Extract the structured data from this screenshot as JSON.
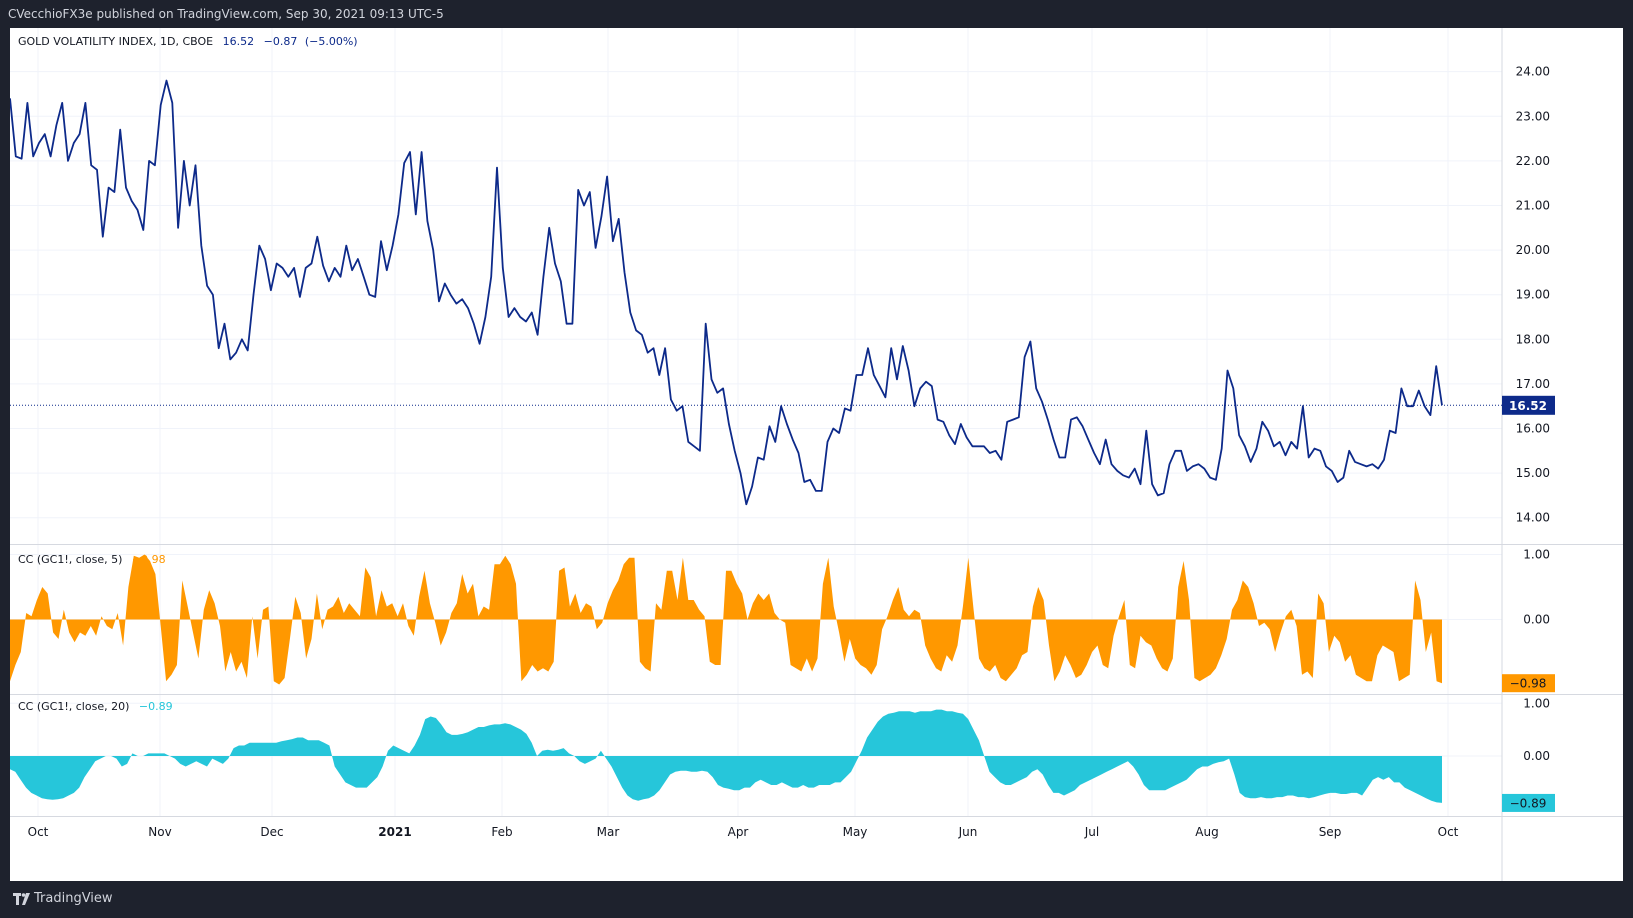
{
  "header": {
    "published": "CVecchioFX3e published on TradingView.com, Sep 30, 2021 09:13 UTC-5"
  },
  "footer": {
    "brand": "TradingView"
  },
  "colors": {
    "price_line": "#0d2a8a",
    "cc5": "#ff9800",
    "cc20": "#26c6da",
    "bg": "#ffffff",
    "frame": "#1e222d"
  },
  "chart_data": [
    {
      "type": "line",
      "legend": {
        "title": "GOLD VOLATILITY INDEX, 1D, CBOE",
        "last": "16.52",
        "change": "−0.87",
        "change_pct": "(−5.00%)"
      },
      "last_label": "16.52",
      "ylim": [
        13.5,
        24.8
      ],
      "yticks": [
        "14.00",
        "15.00",
        "16.00",
        "17.00",
        "18.00",
        "19.00",
        "20.00",
        "21.00",
        "22.00",
        "23.00",
        "24.00"
      ],
      "x_labels": [
        "Oct",
        "Nov",
        "Dec",
        "2021",
        "Feb",
        "Mar",
        "Apr",
        "May",
        "Jun",
        "Jul",
        "Aug",
        "Sep",
        "Oct"
      ],
      "series": [
        {
          "values": [
            23.4,
            22.1,
            22.05,
            23.3,
            22.1,
            22.4,
            22.6,
            22.1,
            22.8,
            23.3,
            22.0,
            22.4,
            22.6,
            23.3,
            21.9,
            21.8,
            20.3,
            21.4,
            21.3,
            22.7,
            21.4,
            21.1,
            20.9,
            20.45,
            22.0,
            21.9,
            23.25,
            23.8,
            23.3,
            20.5,
            22.0,
            21.0,
            21.9,
            20.1,
            19.2,
            19.0,
            17.8,
            18.35,
            17.55,
            17.7,
            18.0,
            17.75,
            19.0,
            20.1,
            19.8,
            19.1,
            19.7,
            19.6,
            19.4,
            19.6,
            18.95,
            19.6,
            19.7,
            20.3,
            19.65,
            19.3,
            19.6,
            19.4,
            20.1,
            19.55,
            19.8,
            19.4,
            19.0,
            18.95,
            20.2,
            19.55,
            20.1,
            20.8,
            21.95,
            22.2,
            20.8,
            22.2,
            20.65,
            20.0,
            18.85,
            19.25,
            19.0,
            18.8,
            18.9,
            18.7,
            18.35,
            17.9,
            18.5,
            19.4,
            21.85,
            19.6,
            18.5,
            18.7,
            18.5,
            18.4,
            18.6,
            18.1,
            19.4,
            20.5,
            19.7,
            19.3,
            18.35,
            18.35,
            21.35,
            21.0,
            21.3,
            20.05,
            20.75,
            21.65,
            20.2,
            20.7,
            19.5,
            18.6,
            18.2,
            18.1,
            17.7,
            17.8,
            17.2,
            17.8,
            16.65,
            16.4,
            16.5,
            15.7,
            15.6,
            15.5,
            18.35,
            17.1,
            16.8,
            16.9,
            16.1,
            15.5,
            15.0,
            14.3,
            14.7,
            15.35,
            15.3,
            16.05,
            15.7,
            16.5,
            16.1,
            15.75,
            15.45,
            14.8,
            14.85,
            14.6,
            14.6,
            15.7,
            16.0,
            15.9,
            16.45,
            16.4,
            17.2,
            17.2,
            17.8,
            17.2,
            16.95,
            16.7,
            17.8,
            17.1,
            17.85,
            17.3,
            16.5,
            16.9,
            17.05,
            16.95,
            16.2,
            16.15,
            15.85,
            15.65,
            16.1,
            15.8,
            15.6,
            15.6,
            15.6,
            15.45,
            15.5,
            15.3,
            16.15,
            16.2,
            16.25,
            17.6,
            17.95,
            16.9,
            16.6,
            16.2,
            15.75,
            15.35,
            15.35,
            16.2,
            16.25,
            16.05,
            15.75,
            15.45,
            15.2,
            15.75,
            15.2,
            15.05,
            14.95,
            14.9,
            15.1,
            14.75,
            15.95,
            14.75,
            14.5,
            14.55,
            15.2,
            15.5,
            15.5,
            15.05,
            15.15,
            15.2,
            15.1,
            14.9,
            14.85,
            15.55,
            17.3,
            16.9,
            15.85,
            15.6,
            15.25,
            15.55,
            16.15,
            15.95,
            15.6,
            15.7,
            15.4,
            15.7,
            15.55,
            16.5,
            15.35,
            15.55,
            15.5,
            15.15,
            15.05,
            14.8,
            14.9,
            15.5,
            15.25,
            15.2,
            15.15,
            15.2,
            15.1,
            15.3,
            15.95,
            15.9,
            16.9,
            16.5,
            16.5,
            16.85,
            16.5,
            16.3,
            17.4,
            16.52
          ]
        }
      ]
    },
    {
      "type": "area",
      "legend": {
        "title": "CC (GC1!, close, 5)",
        "last": "−0.98"
      },
      "last_label": "−0.98",
      "ylim": [
        -1.1,
        1.1
      ],
      "yticks": [
        "1.00",
        "0.00"
      ],
      "series": [
        {
          "values": [
            -0.95,
            -0.7,
            -0.5,
            0.1,
            0.05,
            0.3,
            0.5,
            0.4,
            -0.2,
            -0.3,
            0.15,
            -0.2,
            -0.35,
            -0.2,
            -0.25,
            -0.1,
            -0.25,
            0.05,
            -0.1,
            -0.15,
            0.1,
            -0.4,
            0.5,
            0.98,
            0.95,
            1.0,
            0.9,
            0.7,
            -0.1,
            -0.95,
            -0.85,
            -0.7,
            0.6,
            0.2,
            -0.2,
            -0.6,
            0.15,
            0.45,
            0.25,
            -0.1,
            -0.8,
            -0.5,
            -0.8,
            -0.65,
            -0.9,
            0.05,
            -0.6,
            0.15,
            0.2,
            -0.95,
            -1.0,
            -0.9,
            -0.3,
            0.35,
            0.1,
            -0.6,
            -0.3,
            0.4,
            -0.15,
            0.15,
            0.2,
            0.35,
            0.1,
            0.25,
            0.15,
            0.05,
            0.8,
            0.65,
            0.05,
            0.45,
            0.2,
            0.25,
            0.05,
            0.25,
            -0.1,
            -0.25,
            0.35,
            0.75,
            0.25,
            -0.05,
            -0.4,
            -0.2,
            0.1,
            0.25,
            0.7,
            0.4,
            0.55,
            0.05,
            0.2,
            0.15,
            0.85,
            0.85,
            0.98,
            0.85,
            0.55,
            -0.95,
            -0.85,
            -0.7,
            -0.8,
            -0.75,
            -0.8,
            -0.65,
            0.75,
            0.8,
            0.2,
            0.4,
            0.1,
            0.25,
            0.2,
            -0.15,
            -0.05,
            0.25,
            0.45,
            0.6,
            0.85,
            0.95,
            0.95,
            -0.65,
            -0.75,
            -0.8,
            0.25,
            0.15,
            0.75,
            0.75,
            0.3,
            0.95,
            0.3,
            0.3,
            0.15,
            0.05,
            -0.65,
            -0.7,
            -0.7,
            0.75,
            0.75,
            0.55,
            0.4,
            0.0,
            0.25,
            0.4,
            0.3,
            0.4,
            0.1,
            0.0,
            -0.05,
            -0.7,
            -0.75,
            -0.8,
            -0.6,
            -0.8,
            -0.6,
            0.55,
            0.95,
            0.2,
            -0.2,
            -0.65,
            -0.3,
            -0.6,
            -0.7,
            -0.75,
            -0.85,
            -0.7,
            -0.15,
            0.05,
            0.3,
            0.5,
            0.15,
            0.05,
            0.15,
            0.1,
            -0.4,
            -0.6,
            -0.75,
            -0.8,
            -0.55,
            -0.65,
            -0.4,
            0.2,
            0.95,
            0.15,
            -0.6,
            -0.75,
            -0.8,
            -0.7,
            -0.9,
            -0.95,
            -0.85,
            -0.75,
            -0.55,
            -0.5,
            0.2,
            0.5,
            0.3,
            -0.4,
            -0.95,
            -0.8,
            -0.55,
            -0.7,
            -0.9,
            -0.85,
            -0.7,
            -0.5,
            -0.4,
            -0.7,
            -0.75,
            -0.25,
            0.05,
            0.3,
            -0.7,
            -0.75,
            -0.25,
            -0.35,
            -0.4,
            -0.6,
            -0.75,
            -0.8,
            -0.6,
            0.5,
            0.9,
            0.3,
            -0.9,
            -0.95,
            -0.9,
            -0.85,
            -0.75,
            -0.55,
            -0.3,
            0.15,
            0.3,
            0.6,
            0.5,
            0.25,
            -0.1,
            -0.05,
            -0.15,
            -0.5,
            -0.2,
            0.05,
            0.15,
            -0.1,
            -0.85,
            -0.8,
            -0.9,
            0.4,
            0.25,
            -0.5,
            -0.25,
            -0.35,
            -0.65,
            -0.55,
            -0.85,
            -0.9,
            -0.95,
            -0.95,
            -0.55,
            -0.4,
            -0.45,
            -0.5,
            -0.95,
            -0.9,
            -0.85,
            0.6,
            0.3,
            -0.5,
            -0.2,
            -0.95,
            -0.98
          ]
        }
      ]
    },
    {
      "type": "area",
      "legend": {
        "title": "CC (GC1!, close, 20)",
        "last": "−0.89"
      },
      "last_label": "−0.89",
      "ylim": [
        -1.1,
        1.1
      ],
      "yticks": [
        "1.00",
        "0.00"
      ],
      "series": [
        {
          "values": [
            -0.25,
            -0.3,
            -0.45,
            -0.6,
            -0.7,
            -0.75,
            -0.8,
            -0.82,
            -0.83,
            -0.82,
            -0.8,
            -0.75,
            -0.7,
            -0.6,
            -0.4,
            -0.25,
            -0.1,
            -0.05,
            0.0,
            0.0,
            -0.05,
            -0.2,
            -0.15,
            0.05,
            0.0,
            0.0,
            0.05,
            0.05,
            0.05,
            0.05,
            0.0,
            -0.05,
            -0.15,
            -0.2,
            -0.15,
            -0.1,
            -0.15,
            -0.2,
            -0.05,
            -0.1,
            -0.15,
            -0.05,
            0.15,
            0.2,
            0.2,
            0.25,
            0.25,
            0.25,
            0.25,
            0.25,
            0.25,
            0.28,
            0.3,
            0.32,
            0.35,
            0.35,
            0.3,
            0.3,
            0.3,
            0.25,
            0.2,
            -0.2,
            -0.35,
            -0.5,
            -0.55,
            -0.6,
            -0.6,
            -0.6,
            -0.5,
            -0.4,
            -0.2,
            0.1,
            0.2,
            0.15,
            0.1,
            0.05,
            0.2,
            0.4,
            0.7,
            0.75,
            0.72,
            0.6,
            0.45,
            0.4,
            0.4,
            0.42,
            0.45,
            0.5,
            0.55,
            0.55,
            0.58,
            0.6,
            0.6,
            0.62,
            0.6,
            0.55,
            0.5,
            0.42,
            0.25,
            0.0,
            0.1,
            0.12,
            0.1,
            0.12,
            0.15,
            0.05,
            0.0,
            -0.1,
            -0.15,
            -0.1,
            -0.05,
            0.1,
            -0.05,
            -0.2,
            -0.4,
            -0.6,
            -0.75,
            -0.82,
            -0.85,
            -0.82,
            -0.8,
            -0.75,
            -0.65,
            -0.5,
            -0.35,
            -0.3,
            -0.28,
            -0.28,
            -0.3,
            -0.3,
            -0.28,
            -0.3,
            -0.4,
            -0.55,
            -0.6,
            -0.62,
            -0.65,
            -0.65,
            -0.6,
            -0.6,
            -0.5,
            -0.45,
            -0.5,
            -0.55,
            -0.55,
            -0.5,
            -0.55,
            -0.6,
            -0.6,
            -0.55,
            -0.6,
            -0.6,
            -0.55,
            -0.55,
            -0.55,
            -0.5,
            -0.5,
            -0.4,
            -0.3,
            -0.1,
            0.1,
            0.35,
            0.5,
            0.65,
            0.75,
            0.8,
            0.82,
            0.85,
            0.85,
            0.85,
            0.82,
            0.85,
            0.85,
            0.85,
            0.88,
            0.88,
            0.85,
            0.85,
            0.82,
            0.8,
            0.7,
            0.5,
            0.3,
            0.0,
            -0.3,
            -0.4,
            -0.5,
            -0.55,
            -0.55,
            -0.5,
            -0.45,
            -0.4,
            -0.3,
            -0.25,
            -0.35,
            -0.55,
            -0.7,
            -0.7,
            -0.75,
            -0.7,
            -0.65,
            -0.55,
            -0.5,
            -0.45,
            -0.4,
            -0.35,
            -0.3,
            -0.25,
            -0.2,
            -0.15,
            -0.1,
            -0.2,
            -0.35,
            -0.55,
            -0.65,
            -0.65,
            -0.65,
            -0.65,
            -0.6,
            -0.55,
            -0.5,
            -0.45,
            -0.35,
            -0.25,
            -0.2,
            -0.2,
            -0.15,
            -0.12,
            -0.1,
            -0.05,
            -0.35,
            -0.7,
            -0.78,
            -0.8,
            -0.8,
            -0.78,
            -0.8,
            -0.8,
            -0.78,
            -0.78,
            -0.75,
            -0.75,
            -0.78,
            -0.78,
            -0.8,
            -0.78,
            -0.75,
            -0.72,
            -0.7,
            -0.7,
            -0.72,
            -0.72,
            -0.7,
            -0.7,
            -0.75,
            -0.6,
            -0.45,
            -0.4,
            -0.45,
            -0.4,
            -0.5,
            -0.5,
            -0.6,
            -0.65,
            -0.7,
            -0.75,
            -0.8,
            -0.85,
            -0.88,
            -0.89
          ]
        }
      ]
    }
  ]
}
